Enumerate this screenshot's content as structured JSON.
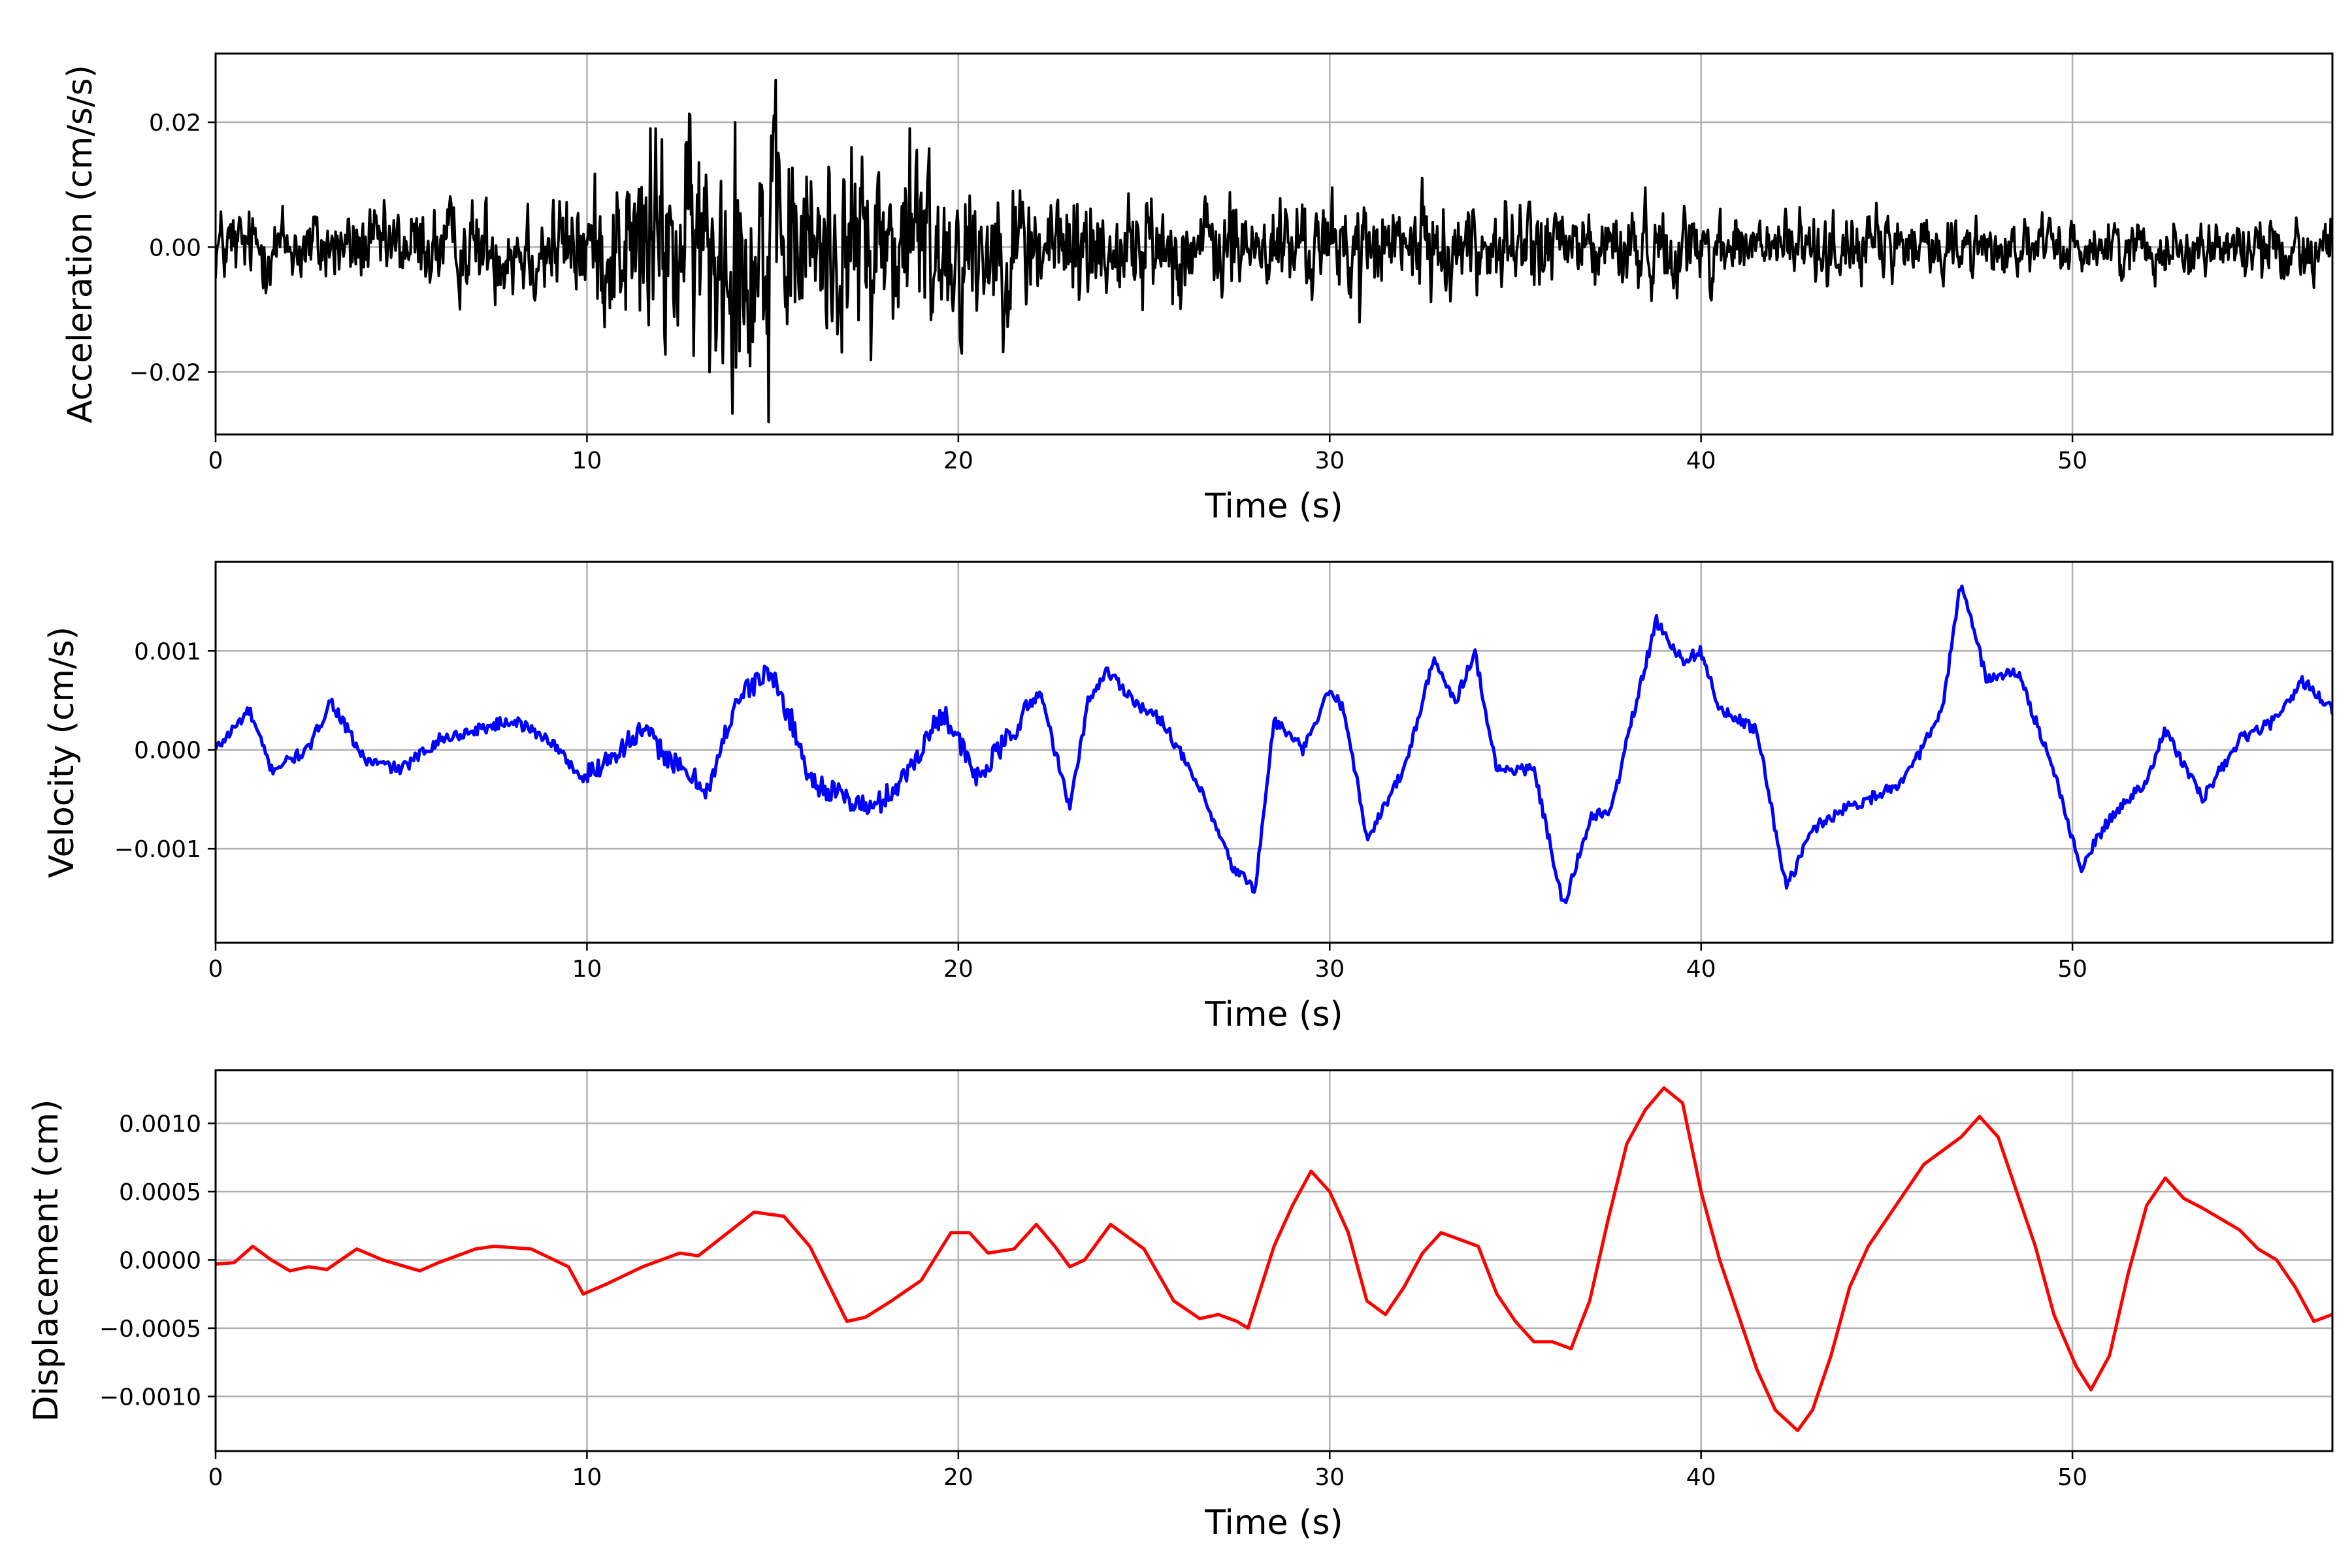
{
  "chart_data": [
    {
      "type": "line",
      "panel": "acceleration",
      "xlabel": "Time (s)",
      "ylabel": "Acceleration (cm/s/s)",
      "xlim": [
        0,
        57
      ],
      "ylim": [
        -0.03,
        0.031
      ],
      "xticks": [
        0,
        10,
        20,
        30,
        40,
        50
      ],
      "xtick_labels": [
        "0",
        "10",
        "20",
        "30",
        "40",
        "50"
      ],
      "yticks": [
        -0.02,
        0.0,
        0.02
      ],
      "ytick_labels": [
        "−0.02",
        "0.00",
        "0.02"
      ],
      "grid": true,
      "color": "#000000",
      "signal": "noisy acceleration record; amplitude envelope rises from about 0.006 to 0.02 between 10 s and 19 s, then decays to about 0.004",
      "envelope_points": {
        "x": [
          0,
          5,
          10,
          11.5,
          13,
          14.5,
          16,
          18.8,
          21,
          25,
          30,
          34,
          40,
          45,
          50,
          57
        ],
        "amplitude": [
          0.006,
          0.006,
          0.009,
          0.016,
          0.018,
          0.019,
          0.015,
          0.016,
          0.011,
          0.008,
          0.007,
          0.007,
          0.006,
          0.005,
          0.004,
          0.005
        ]
      },
      "peaks": [
        {
          "x": 11.7,
          "y": 0.019
        },
        {
          "x": 13.3,
          "y": -0.02
        },
        {
          "x": 14.0,
          "y": 0.02
        },
        {
          "x": 14.9,
          "y": -0.028
        },
        {
          "x": 18.7,
          "y": 0.019
        },
        {
          "x": 20.1,
          "y": -0.017
        },
        {
          "x": 30.8,
          "y": -0.012
        }
      ]
    },
    {
      "type": "line",
      "panel": "velocity",
      "xlabel": "Time (s)",
      "ylabel": "Velocity (cm/s)",
      "xlim": [
        0,
        57
      ],
      "ylim": [
        -0.00195,
        0.0019
      ],
      "xticks": [
        0,
        10,
        20,
        30,
        40,
        50
      ],
      "xtick_labels": [
        "0",
        "10",
        "20",
        "30",
        "40",
        "50"
      ],
      "yticks": [
        -0.001,
        0.0,
        0.001
      ],
      "ytick_labels": [
        "−0.001",
        "0.000",
        "0.001"
      ],
      "grid": true,
      "color": "#0000ff",
      "x": [
        0,
        0.9,
        1.5,
        2.5,
        3.1,
        4,
        5,
        6,
        7,
        8,
        9,
        9.9,
        10.5,
        11.5,
        12.5,
        13.3,
        14,
        14.9,
        15.5,
        16,
        17,
        17.7,
        18.5,
        19.6,
        20.5,
        21.5,
        22.2,
        23,
        23.5,
        24,
        25,
        25.5,
        26.5,
        27.4,
        28,
        28.5,
        29.3,
        30,
        30.4,
        31,
        32,
        32.8,
        33.4,
        33.9,
        34.5,
        35.5,
        36.3,
        37,
        37.6,
        38,
        38.8,
        39.5,
        40,
        40.5,
        41.5,
        42.3,
        43,
        43.8,
        44.5,
        45.5,
        46.5,
        47,
        47.7,
        48.5,
        49.5,
        50.2,
        51,
        52,
        52.5,
        53.5,
        54.5,
        55.5,
        56.2,
        57
      ],
      "y": [
        0.0,
        0.0004,
        -0.0002,
        0.0,
        0.0005,
        -0.0001,
        -0.0002,
        0.0001,
        0.0002,
        0.0003,
        0.0001,
        -0.0003,
        -0.0001,
        0.0002,
        -0.0002,
        -0.0004,
        0.0005,
        0.0008,
        0.0003,
        -0.0003,
        -0.0005,
        -0.0006,
        -0.0003,
        0.0004,
        -0.0003,
        0.0002,
        0.0006,
        -0.0006,
        0.0005,
        0.0008,
        0.0004,
        0.0003,
        -0.0004,
        -0.0012,
        -0.0014,
        0.0003,
        0.0,
        0.0006,
        0.0004,
        -0.0009,
        -0.0002,
        0.0009,
        0.0005,
        0.001,
        -0.0002,
        -0.0002,
        -0.0016,
        -0.0007,
        -0.0006,
        0.0001,
        0.0013,
        0.0009,
        0.001,
        0.0004,
        0.0002,
        -0.0014,
        -0.0008,
        -0.0006,
        -0.0005,
        -0.0003,
        0.0004,
        0.0017,
        0.0007,
        0.0008,
        -0.0002,
        -0.0012,
        -0.0007,
        -0.0003,
        0.0002,
        -0.0005,
        0.0001,
        0.0003,
        0.0007,
        0.0004
      ]
    },
    {
      "type": "line",
      "panel": "displacement",
      "xlabel": "Time (s)",
      "ylabel": "Displacement (cm)",
      "xlim": [
        0,
        57
      ],
      "ylim": [
        -0.0014,
        0.00139
      ],
      "xticks": [
        0,
        10,
        20,
        30,
        40,
        50
      ],
      "xtick_labels": [
        "0",
        "10",
        "20",
        "30",
        "40",
        "50"
      ],
      "yticks": [
        -0.001,
        -0.0005,
        0.0,
        0.0005,
        0.001
      ],
      "ytick_labels": [
        "−0.0010",
        "−0.0005",
        "0.0000",
        "0.0005",
        "0.0010"
      ],
      "grid": true,
      "color": "#ff0000",
      "x": [
        0,
        0.5,
        1.0,
        1.5,
        2.0,
        2.5,
        3.0,
        3.8,
        4.5,
        5.0,
        5.5,
        6.0,
        7.0,
        7.5,
        8.5,
        9.5,
        9.9,
        10.5,
        11.5,
        12.5,
        13.0,
        14.5,
        15.3,
        16.0,
        17.0,
        17.5,
        18.2,
        19.0,
        19.8,
        20.3,
        20.8,
        21.5,
        22.1,
        22.6,
        23.0,
        23.4,
        24.1,
        25.0,
        25.8,
        26.5,
        27.0,
        27.5,
        27.8,
        28.5,
        29.0,
        29.5,
        30.0,
        30.5,
        31.0,
        31.5,
        32.0,
        32.5,
        33.0,
        33.5,
        34.0,
        34.5,
        35.0,
        35.5,
        36.0,
        36.5,
        37.0,
        37.5,
        38.0,
        38.5,
        39.0,
        39.5,
        40.0,
        40.5,
        41.0,
        41.5,
        42.0,
        42.6,
        43.0,
        43.5,
        44.0,
        44.5,
        45.0,
        45.5,
        46.0,
        46.5,
        47.0,
        47.5,
        48.0,
        48.5,
        49.0,
        49.5,
        50.1,
        50.5,
        51.0,
        51.5,
        52.0,
        52.5,
        53.0,
        53.5,
        54.0,
        54.5,
        55.0,
        55.5,
        56.0,
        56.5,
        57.0
      ],
      "y": [
        -3e-05,
        -2e-05,
        0.0001,
        0.0,
        -8e-05,
        -5e-05,
        -7e-05,
        8e-05,
        0.0,
        -4e-05,
        -8e-05,
        -2e-05,
        8e-05,
        0.0001,
        8e-05,
        -5e-05,
        -0.00025,
        -0.00018,
        -5e-05,
        5e-05,
        3e-05,
        0.00035,
        0.00032,
        0.0001,
        -0.00045,
        -0.00042,
        -0.0003,
        -0.00015,
        0.0002,
        0.0002,
        5e-05,
        8e-05,
        0.00026,
        0.0001,
        -5e-05,
        0.0,
        0.00026,
        8e-05,
        -0.0003,
        -0.00043,
        -0.0004,
        -0.00045,
        -0.0005,
        0.0001,
        0.0004,
        0.00065,
        0.0005,
        0.0002,
        -0.0003,
        -0.0004,
        -0.0002,
        5e-05,
        0.0002,
        0.00015,
        0.0001,
        -0.00025,
        -0.00045,
        -0.0006,
        -0.0006,
        -0.00065,
        -0.0003,
        0.0003,
        0.00085,
        0.0011,
        0.00126,
        0.00115,
        0.0005,
        0.0,
        -0.0004,
        -0.0008,
        -0.0011,
        -0.00125,
        -0.0011,
        -0.0007,
        -0.0002,
        0.0001,
        0.0003,
        0.0005,
        0.0007,
        0.0008,
        0.0009,
        0.00105,
        0.0009,
        0.0005,
        0.0001,
        -0.0004,
        -0.00078,
        -0.00095,
        -0.0007,
        -0.0001,
        0.0004,
        0.0006,
        0.00045,
        0.00038,
        0.0003,
        0.00022,
        8e-05,
        0.0,
        -0.0002,
        -0.00045,
        -0.0004
      ]
    }
  ]
}
